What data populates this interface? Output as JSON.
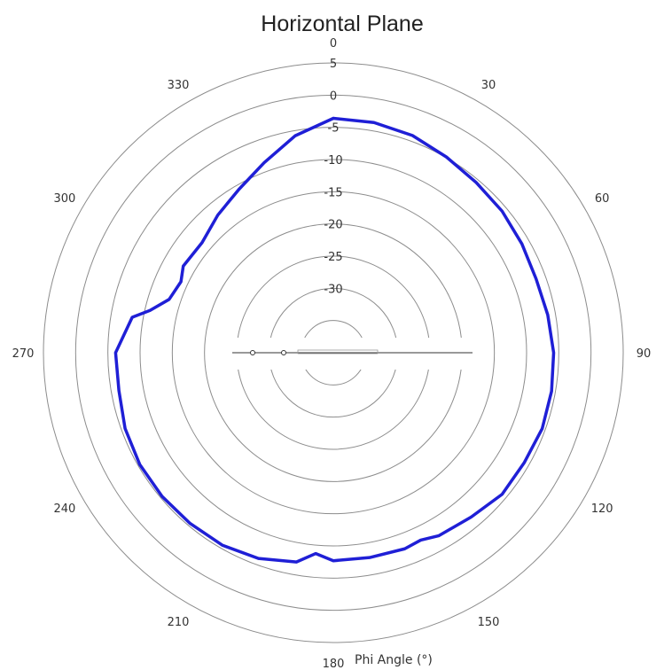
{
  "chart_data": {
    "type": "line",
    "title": "Horizontal Plane",
    "xlabel": "Phi Angle (°)",
    "ylabel": "",
    "angle_ticks": [
      "0",
      "30",
      "60",
      "90",
      "120",
      "150",
      "180",
      "210",
      "240",
      "270",
      "300",
      "330"
    ],
    "radial_ticks": [
      "5",
      "0",
      "-5",
      "-10",
      "-15",
      "-20",
      "-25",
      "-30"
    ],
    "rlim": [
      -40,
      5
    ],
    "grid": true,
    "series": [
      {
        "color": "#1f1fd6",
        "points": [
          [
            0,
            -3.6
          ],
          [
            10,
            -3.7
          ],
          [
            20,
            -4.1
          ],
          [
            30,
            -4.9
          ],
          [
            40,
            -5.5
          ],
          [
            50,
            -5.8
          ],
          [
            60,
            -6.2
          ],
          [
            70,
            -6.5
          ],
          [
            80,
            -6.2
          ],
          [
            90,
            -5.8
          ],
          [
            100,
            -5.6
          ],
          [
            110,
            -5.5
          ],
          [
            120,
            -5.8
          ],
          [
            130,
            -5.8
          ],
          [
            140,
            -6.7
          ],
          [
            150,
            -7.2
          ],
          [
            155,
            -7.9
          ],
          [
            160,
            -7.6
          ],
          [
            170,
            -7.7
          ],
          [
            180,
            -7.7
          ],
          [
            185,
            -8.7
          ],
          [
            190,
            -7.0
          ],
          [
            200,
            -6.0
          ],
          [
            210,
            -5.5
          ],
          [
            220,
            -5.4
          ],
          [
            230,
            -5.3
          ],
          [
            240,
            -5.3
          ],
          [
            250,
            -5.6
          ],
          [
            260,
            -6.2
          ],
          [
            270,
            -6.2
          ],
          [
            280,
            -8.3
          ],
          [
            283,
            -10.8
          ],
          [
            288,
            -13.2
          ],
          [
            295,
            -13.9
          ],
          [
            300,
            -13.1
          ],
          [
            310,
            -13.4
          ],
          [
            320,
            -12.1
          ],
          [
            330,
            -10.7
          ],
          [
            340,
            -8.6
          ],
          [
            350,
            -5.8
          ],
          [
            360,
            -3.6
          ]
        ]
      }
    ]
  }
}
